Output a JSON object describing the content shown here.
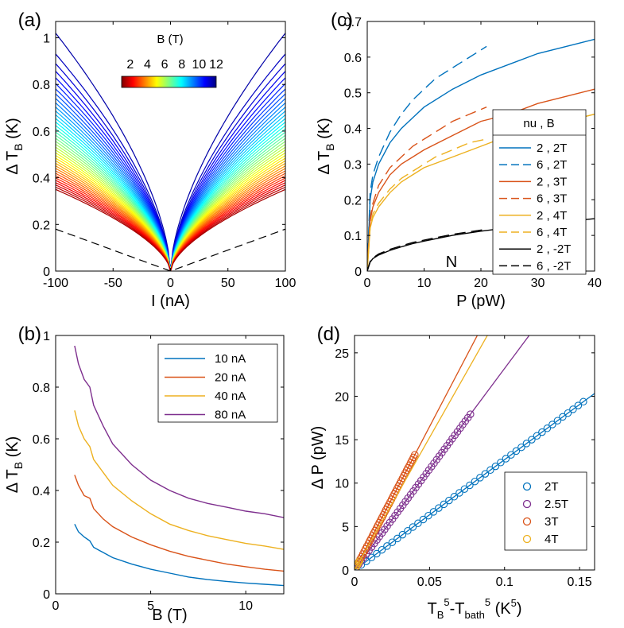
{
  "chart_data": [
    {
      "panel": "(a)",
      "type": "line",
      "xlabel": "I (nA)",
      "ylabel": "Δ T",
      "ylabel_sub": "B",
      "ylabel_unit": " (K)",
      "xlim": [
        -100,
        100
      ],
      "ylim": [
        0,
        1.07
      ],
      "xticks": [
        -100,
        -50,
        0,
        50,
        100
      ],
      "yticks": [
        0,
        0.2,
        0.4,
        0.6,
        0.8,
        1
      ],
      "xticklabels": [
        "-100",
        "-50",
        "0",
        "50",
        "100"
      ],
      "yticklabels": [
        "0",
        "0.2",
        "0.4",
        "0.6",
        "0.8",
        "1"
      ],
      "colorbar": {
        "title": "B (T)",
        "ticks": [
          "2",
          "4",
          "6",
          "8",
          "10",
          "12"
        ],
        "range": [
          1,
          12
        ],
        "colormap": "jet"
      },
      "series_family": {
        "B_min": 1,
        "B_max": 12,
        "count": 40,
        "dT_at_100nA_min": 0.35,
        "dT_at_100nA_max": 1.02,
        "shape": "sqrt-like"
      },
      "reference_line": {
        "style": "dashed",
        "color": "#000000",
        "x": [
          -100,
          0,
          100
        ],
        "y": [
          0.18,
          0,
          0.18
        ]
      }
    },
    {
      "panel": "(b)",
      "type": "line",
      "xlabel": "B (T)",
      "ylabel": "Δ T",
      "ylabel_sub": "B",
      "ylabel_unit": " (K)",
      "xlim": [
        0,
        12
      ],
      "ylim": [
        0,
        1
      ],
      "xticks": [
        0,
        5,
        10
      ],
      "yticks": [
        0,
        0.2,
        0.4,
        0.6,
        0.8,
        1
      ],
      "xticklabels": [
        "0",
        "5",
        "10"
      ],
      "yticklabels": [
        "0",
        "0.2",
        "0.4",
        "0.6",
        "0.8",
        "1"
      ],
      "x": [
        1,
        1.2,
        1.5,
        1.8,
        2,
        2.5,
        3,
        4,
        5,
        6,
        7,
        8,
        9,
        10,
        11,
        12
      ],
      "series": [
        {
          "name": "10 nA",
          "color": "#0072BD",
          "values": [
            0.27,
            0.24,
            0.22,
            0.205,
            0.18,
            0.16,
            0.14,
            0.115,
            0.095,
            0.08,
            0.065,
            0.055,
            0.048,
            0.042,
            0.037,
            0.032
          ]
        },
        {
          "name": "20 nA",
          "color": "#D95319",
          "values": [
            0.46,
            0.42,
            0.38,
            0.37,
            0.33,
            0.29,
            0.26,
            0.22,
            0.19,
            0.165,
            0.145,
            0.13,
            0.115,
            0.105,
            0.095,
            0.088
          ]
        },
        {
          "name": "40 nA",
          "color": "#EDB120",
          "values": [
            0.71,
            0.65,
            0.6,
            0.57,
            0.52,
            0.47,
            0.42,
            0.36,
            0.31,
            0.27,
            0.245,
            0.225,
            0.21,
            0.195,
            0.185,
            0.172
          ]
        },
        {
          "name": "80 nA",
          "color": "#7E2F8E",
          "values": [
            0.96,
            0.89,
            0.83,
            0.8,
            0.73,
            0.65,
            0.58,
            0.5,
            0.44,
            0.4,
            0.37,
            0.35,
            0.335,
            0.32,
            0.31,
            0.295
          ]
        }
      ],
      "legend_position": "top-right"
    },
    {
      "panel": "(c)",
      "type": "line",
      "xlabel": "P (pW)",
      "ylabel": "Δ T",
      "ylabel_sub": "B",
      "ylabel_unit": " (K)",
      "xlim": [
        0,
        40
      ],
      "ylim": [
        0,
        0.7
      ],
      "xticks": [
        0,
        10,
        20,
        30,
        40
      ],
      "yticks": [
        0,
        0.1,
        0.2,
        0.3,
        0.4,
        0.5,
        0.6,
        0.7
      ],
      "xticklabels": [
        "0",
        "10",
        "20",
        "30",
        "40"
      ],
      "yticklabels": [
        "0",
        "0.1",
        "0.2",
        "0.3",
        "0.4",
        "0.5",
        "0.6",
        "0.7"
      ],
      "legend_title": "nu , B",
      "legend_position": "right",
      "annotation": "N",
      "series": [
        {
          "name": "2 , 2T",
          "color": "#0072BD",
          "dash": "solid",
          "x": [
            0,
            0.5,
            1,
            2,
            4,
            6,
            8,
            10,
            15,
            20,
            25,
            30,
            35,
            40
          ],
          "values": [
            0,
            0.2,
            0.25,
            0.3,
            0.36,
            0.4,
            0.43,
            0.46,
            0.51,
            0.55,
            0.58,
            0.61,
            0.63,
            0.65
          ]
        },
        {
          "name": "6 , 2T",
          "color": "#0072BD",
          "dash": "dash",
          "x": [
            0,
            0.5,
            1,
            2,
            4,
            6,
            8,
            10,
            12,
            15,
            18,
            21
          ],
          "values": [
            0,
            0.22,
            0.27,
            0.32,
            0.39,
            0.44,
            0.48,
            0.51,
            0.54,
            0.57,
            0.6,
            0.63
          ]
        },
        {
          "name": "2 , 3T",
          "color": "#D95319",
          "dash": "solid",
          "x": [
            0,
            0.5,
            1,
            2,
            4,
            6,
            8,
            10,
            15,
            20,
            25,
            30,
            35,
            40
          ],
          "values": [
            0,
            0.14,
            0.18,
            0.22,
            0.27,
            0.3,
            0.32,
            0.34,
            0.38,
            0.42,
            0.44,
            0.47,
            0.49,
            0.51
          ]
        },
        {
          "name": "6 , 3T",
          "color": "#D95319",
          "dash": "dash",
          "x": [
            0,
            0.5,
            1,
            2,
            4,
            6,
            8,
            10,
            12,
            15,
            18,
            21
          ],
          "values": [
            0,
            0.15,
            0.19,
            0.24,
            0.29,
            0.32,
            0.35,
            0.37,
            0.39,
            0.42,
            0.44,
            0.46
          ]
        },
        {
          "name": "2 , 4T",
          "color": "#EDB120",
          "dash": "solid",
          "x": [
            0,
            0.5,
            1,
            2,
            4,
            6,
            8,
            10,
            15,
            20,
            25,
            30,
            35,
            40
          ],
          "values": [
            0,
            0.12,
            0.15,
            0.18,
            0.22,
            0.25,
            0.27,
            0.29,
            0.32,
            0.35,
            0.38,
            0.4,
            0.42,
            0.44
          ]
        },
        {
          "name": "6 , 4T",
          "color": "#EDB120",
          "dash": "dash",
          "x": [
            0,
            0.5,
            1,
            2,
            4,
            6,
            8,
            10,
            12,
            15,
            18,
            21
          ],
          "values": [
            0,
            0.12,
            0.16,
            0.19,
            0.23,
            0.26,
            0.28,
            0.3,
            0.32,
            0.34,
            0.36,
            0.37
          ]
        },
        {
          "name": "2 , -2T",
          "color": "#000000",
          "dash": "solid",
          "x": [
            0,
            0.5,
            1,
            2,
            4,
            6,
            8,
            10,
            15,
            20,
            25,
            30,
            35,
            40
          ],
          "values": [
            0,
            0.025,
            0.035,
            0.045,
            0.058,
            0.068,
            0.077,
            0.084,
            0.1,
            0.112,
            0.122,
            0.131,
            0.139,
            0.147
          ]
        },
        {
          "name": "6 , -2T",
          "color": "#000000",
          "dash": "dash",
          "x": [
            0,
            0.5,
            1,
            2,
            4,
            6,
            8,
            10,
            15,
            20,
            21
          ],
          "values": [
            0,
            0.027,
            0.037,
            0.048,
            0.061,
            0.071,
            0.08,
            0.087,
            0.103,
            0.115,
            0.117
          ]
        }
      ]
    },
    {
      "panel": "(d)",
      "type": "scatter",
      "xlabel": "T",
      "xlabel_parts": [
        "T",
        "B",
        "5",
        "-T",
        "bath",
        "5",
        "  (K",
        "5",
        ")"
      ],
      "ylabel": "Δ P (pW)",
      "xlim": [
        0,
        0.16
      ],
      "ylim": [
        0,
        27
      ],
      "xticks": [
        0,
        0.05,
        0.1,
        0.15
      ],
      "yticks": [
        0,
        5,
        10,
        15,
        20,
        25
      ],
      "xticklabels": [
        "0",
        "0.05",
        "0.1",
        "0.15"
      ],
      "yticklabels": [
        "0",
        "5",
        "10",
        "15",
        "20",
        "25"
      ],
      "legend_position": "bottom-right",
      "series": [
        {
          "name": "2T",
          "color": "#0072BD",
          "slope": 127,
          "x_max": 0.155,
          "fit_x_max": 0.16
        },
        {
          "name": "2.5T",
          "color": "#7E2F8E",
          "slope": 232,
          "x_max": 0.078,
          "fit_x_max": 0.118
        },
        {
          "name": "3T",
          "color": "#D95319",
          "slope": 330,
          "x_max": 0.041,
          "fit_x_max": 0.082
        },
        {
          "name": "4T",
          "color": "#EDB120",
          "slope": 305,
          "x_max": 0.004,
          "fit_x_max": 0.089
        }
      ]
    }
  ]
}
